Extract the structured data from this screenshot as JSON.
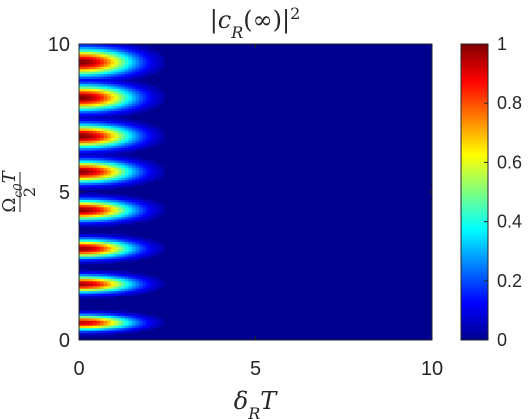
{
  "chart_data": {
    "type": "heatmap",
    "title": "|c_R(∞)|²",
    "xlabel": "δ_R T",
    "ylabel": "Ω_c0 T / 2",
    "xlim": [
      0,
      10
    ],
    "ylim": [
      0,
      10
    ],
    "x_ticks": [
      "0",
      "5",
      "10"
    ],
    "y_ticks": [
      "0",
      "5",
      "10"
    ],
    "colorbar": {
      "colormap": "jet",
      "range": [
        0,
        1
      ],
      "ticks": [
        "0",
        "0.2",
        "0.4",
        "0.6",
        "0.8",
        "1"
      ]
    },
    "peaks": [
      {
        "y": 0.6,
        "max": 0.95
      },
      {
        "y": 1.9,
        "max": 0.97
      },
      {
        "y": 3.1,
        "max": 0.98
      },
      {
        "y": 4.4,
        "max": 0.99
      },
      {
        "y": 5.7,
        "max": 0.99
      },
      {
        "y": 6.9,
        "max": 1.0
      },
      {
        "y": 8.2,
        "max": 1.0
      },
      {
        "y": 9.4,
        "max": 1.0
      }
    ],
    "grid": false,
    "background_value": 0
  }
}
